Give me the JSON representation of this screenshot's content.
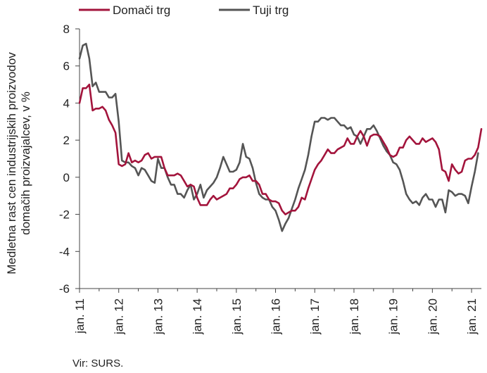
{
  "chart_data": {
    "type": "line",
    "ylabel": [
      "Medletna rast cen industrijskih proizvodov",
      "domačih proizvajalcev, v %"
    ],
    "ylim": [
      -6,
      8
    ],
    "yticks": [
      -6,
      -4,
      -2,
      0,
      2,
      4,
      6,
      8
    ],
    "x_tick_labels": [
      "jan. 11",
      "jan. 12",
      "jan. 13",
      "jan. 14",
      "jan. 15",
      "jan. 16",
      "jan. 17",
      "jan. 18",
      "jan. 19",
      "jan. 20",
      "jan. 21"
    ],
    "x_start": "2011-01",
    "legend_position": "top",
    "grid": false,
    "source": "Vir: SURS.",
    "series": [
      {
        "name": "Domači trg",
        "color": "#a3143c",
        "values": [
          4.0,
          4.8,
          4.8,
          5.0,
          3.6,
          3.7,
          3.7,
          3.8,
          3.6,
          3.1,
          2.8,
          2.4,
          0.7,
          0.6,
          0.7,
          1.3,
          0.8,
          0.9,
          0.8,
          0.9,
          1.2,
          1.3,
          1.0,
          1.1,
          1.1,
          1.1,
          0.5,
          0.1,
          0.1,
          0.1,
          0.2,
          0.1,
          -0.2,
          -0.5,
          -0.4,
          -0.5,
          -1.1,
          -1.5,
          -1.5,
          -1.5,
          -1.2,
          -1.0,
          -1.2,
          -1.1,
          -1.0,
          -0.9,
          -0.6,
          -0.6,
          -0.4,
          -0.1,
          0.0,
          0.0,
          0.1,
          -0.2,
          -0.2,
          -0.4,
          -0.9,
          -0.9,
          -1.2,
          -1.3,
          -1.3,
          -1.4,
          -1.8,
          -2.0,
          -1.9,
          -1.8,
          -1.8,
          -1.6,
          -1.1,
          -1.2,
          -0.6,
          -0.1,
          0.4,
          0.7,
          0.9,
          1.2,
          1.5,
          1.3,
          1.3,
          1.5,
          1.6,
          1.7,
          2.1,
          1.8,
          1.8,
          2.2,
          2.5,
          2.2,
          1.7,
          2.2,
          2.3,
          2.3,
          2.2,
          1.9,
          1.6,
          1.2,
          1.1,
          1.2,
          1.6,
          1.6,
          2.0,
          2.2,
          2.0,
          1.8,
          1.8,
          2.1,
          1.9,
          2.0,
          2.1,
          1.9,
          1.5,
          0.4,
          0.3,
          -0.2,
          0.7,
          0.4,
          0.2,
          0.3,
          0.9,
          1.0,
          1.0,
          1.2,
          1.6,
          2.6
        ]
      },
      {
        "name": "Tuji trg",
        "color": "#555555",
        "values": [
          6.4,
          7.1,
          7.2,
          6.4,
          4.9,
          5.1,
          4.6,
          4.6,
          4.6,
          4.3,
          4.3,
          4.5,
          3.0,
          0.9,
          0.8,
          0.8,
          0.6,
          0.5,
          0.1,
          0.5,
          0.4,
          0.1,
          -0.2,
          -0.3,
          1.0,
          0.5,
          0.5,
          0.0,
          -0.4,
          -0.4,
          -0.9,
          -0.9,
          -1.1,
          -0.7,
          -0.4,
          -1.2,
          -0.9,
          -0.4,
          -1.1,
          -0.7,
          -0.5,
          -0.3,
          0.0,
          0.5,
          1.1,
          0.7,
          0.3,
          0.3,
          0.4,
          0.8,
          1.8,
          1.1,
          1.0,
          0.5,
          -0.3,
          -0.9,
          -1.1,
          -1.2,
          -1.2,
          -1.6,
          -1.8,
          -2.3,
          -2.9,
          -2.5,
          -2.2,
          -1.7,
          -1.2,
          -0.6,
          -0.1,
          0.4,
          1.2,
          2.2,
          3.0,
          3.0,
          3.2,
          3.2,
          3.1,
          3.2,
          3.2,
          3.0,
          2.8,
          2.8,
          2.6,
          2.7,
          2.3,
          2.2,
          1.8,
          2.2,
          2.6,
          2.6,
          2.8,
          2.5,
          2.1,
          1.7,
          1.4,
          1.2,
          0.8,
          0.7,
          0.4,
          -0.2,
          -0.9,
          -1.2,
          -1.4,
          -1.3,
          -1.5,
          -1.1,
          -0.9,
          -1.2,
          -1.2,
          -1.6,
          -1.2,
          -1.2,
          -1.9,
          -0.7,
          -0.8,
          -1.0,
          -0.9,
          -0.9,
          -1.0,
          -1.4,
          -0.5,
          0.3,
          1.3
        ]
      }
    ]
  }
}
